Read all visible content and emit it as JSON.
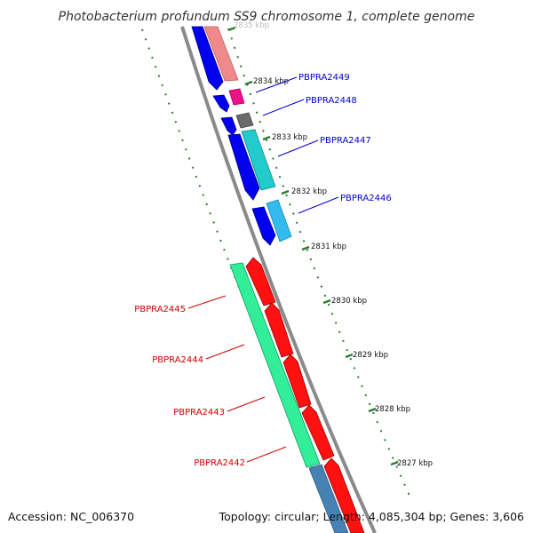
{
  "title": "Photobacterium profundum SS9 chromosome 1, complete genome",
  "accession": "Accession: NC_006370",
  "summary": "Topology: circular; Length: 4,085,304 bp; Genes: 3,606",
  "colors": {
    "backbone": "#8a8a8a",
    "ticks": "#2e7d32",
    "forward_label": "#0000cc",
    "reverse_label": "#cc0000"
  },
  "ticks": [
    {
      "label": "2835 kbp",
      "faded": true
    },
    {
      "label": "2834 kbp"
    },
    {
      "label": "2833 kbp"
    },
    {
      "label": "2832 kbp"
    },
    {
      "label": "2831 kbp"
    },
    {
      "label": "2830 kbp"
    },
    {
      "label": "2829 kbp"
    },
    {
      "label": "2828 kbp"
    },
    {
      "label": "2827 kbp"
    }
  ],
  "gene_labels": [
    {
      "label": "PBPRA2449",
      "strand": "forward"
    },
    {
      "label": "PBPRA2448",
      "strand": "forward"
    },
    {
      "label": "PBPRA2447",
      "strand": "forward"
    },
    {
      "label": "PBPRA2446",
      "strand": "forward"
    },
    {
      "label": "PBPRA2445",
      "strand": "reverse"
    },
    {
      "label": "PBPRA2444",
      "strand": "reverse"
    },
    {
      "label": "PBPRA2443",
      "strand": "reverse"
    },
    {
      "label": "PBPRA2442",
      "strand": "reverse"
    }
  ]
}
